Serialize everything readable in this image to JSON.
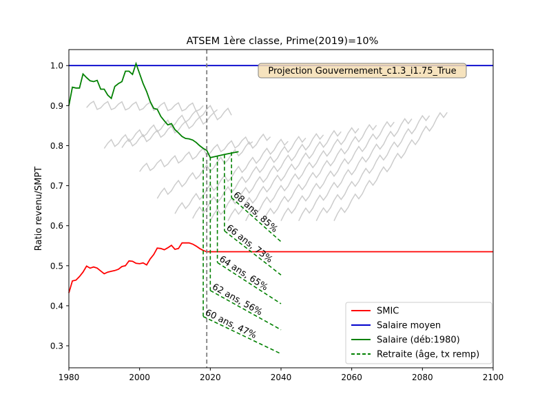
{
  "chart_data": {
    "type": "line",
    "title": "ATSEM 1ère classe, Prime(2019)=10%",
    "xlabel": "",
    "ylabel": "Ratio revenu/SMPT",
    "xlim": [
      1980,
      2100
    ],
    "ylim": [
      0.245,
      1.04
    ],
    "x_ticks": [
      1980,
      2000,
      2020,
      2040,
      2060,
      2080,
      2100
    ],
    "y_ticks": [
      0.3,
      0.4,
      0.5,
      0.6,
      0.7,
      0.8,
      0.9,
      1.0
    ],
    "grid": false,
    "legend_position": "lower right",
    "annotation_box": "Projection Gouvernement_c1.3_i1.75_True",
    "vertical_marker": {
      "x": 2019,
      "style": "dashed",
      "color": "#808080"
    },
    "series": [
      {
        "name": "SMIC",
        "color": "#ff0000",
        "style": "solid",
        "points": [
          [
            1980,
            0.432
          ],
          [
            1981,
            0.462
          ],
          [
            1982,
            0.464
          ],
          [
            1983,
            0.473
          ],
          [
            1984,
            0.484
          ],
          [
            1985,
            0.499
          ],
          [
            1986,
            0.494
          ],
          [
            1987,
            0.497
          ],
          [
            1988,
            0.494
          ],
          [
            1989,
            0.487
          ],
          [
            1990,
            0.48
          ],
          [
            1991,
            0.484
          ],
          [
            1992,
            0.486
          ],
          [
            1993,
            0.488
          ],
          [
            1994,
            0.491
          ],
          [
            1995,
            0.498
          ],
          [
            1996,
            0.5
          ],
          [
            1997,
            0.512
          ],
          [
            1998,
            0.511
          ],
          [
            1999,
            0.506
          ],
          [
            2000,
            0.505
          ],
          [
            2001,
            0.507
          ],
          [
            2002,
            0.502
          ],
          [
            2003,
            0.517
          ],
          [
            2004,
            0.528
          ],
          [
            2005,
            0.544
          ],
          [
            2006,
            0.543
          ],
          [
            2007,
            0.54
          ],
          [
            2008,
            0.545
          ],
          [
            2009,
            0.551
          ],
          [
            2010,
            0.541
          ],
          [
            2011,
            0.543
          ],
          [
            2012,
            0.557
          ],
          [
            2013,
            0.557
          ],
          [
            2014,
            0.557
          ],
          [
            2015,
            0.554
          ],
          [
            2016,
            0.549
          ],
          [
            2017,
            0.543
          ],
          [
            2018,
            0.538
          ],
          [
            2019,
            0.535
          ],
          [
            2030,
            0.535
          ],
          [
            2060,
            0.535
          ],
          [
            2100,
            0.535
          ]
        ]
      },
      {
        "name": "Salaire moyen",
        "color": "#0000cc",
        "style": "solid",
        "points": [
          [
            1980,
            1.0
          ],
          [
            2100,
            1.0
          ]
        ]
      },
      {
        "name": "Salaire (déb:1980)",
        "color": "#008000",
        "style": "solid",
        "points": [
          [
            1980,
            0.9
          ],
          [
            1981,
            0.946
          ],
          [
            1982,
            0.944
          ],
          [
            1983,
            0.944
          ],
          [
            1984,
            0.979
          ],
          [
            1985,
            0.97
          ],
          [
            1986,
            0.962
          ],
          [
            1987,
            0.96
          ],
          [
            1988,
            0.963
          ],
          [
            1989,
            0.941
          ],
          [
            1990,
            0.941
          ],
          [
            1991,
            0.926
          ],
          [
            1992,
            0.918
          ],
          [
            1993,
            0.948
          ],
          [
            1994,
            0.955
          ],
          [
            1995,
            0.96
          ],
          [
            1996,
            0.986
          ],
          [
            1997,
            0.986
          ],
          [
            1998,
            0.978
          ],
          [
            1999,
            1.005
          ],
          [
            2000,
            0.98
          ],
          [
            2001,
            0.955
          ],
          [
            2002,
            0.935
          ],
          [
            2003,
            0.91
          ],
          [
            2004,
            0.893
          ],
          [
            2005,
            0.891
          ],
          [
            2006,
            0.873
          ],
          [
            2007,
            0.862
          ],
          [
            2008,
            0.852
          ],
          [
            2009,
            0.855
          ],
          [
            2010,
            0.84
          ],
          [
            2011,
            0.832
          ],
          [
            2012,
            0.823
          ],
          [
            2013,
            0.818
          ],
          [
            2014,
            0.817
          ],
          [
            2015,
            0.814
          ],
          [
            2016,
            0.808
          ],
          [
            2017,
            0.8
          ],
          [
            2018,
            0.793
          ],
          [
            2019,
            0.788
          ],
          [
            2020,
            0.77
          ],
          [
            2024,
            0.778
          ],
          [
            2028,
            0.785
          ]
        ]
      },
      {
        "name": "Retraite (âge, tx remp)",
        "color": "#008000",
        "style": "dashed",
        "segments": [
          {
            "label": "60 ans, 47%",
            "drop_x": 2018,
            "drop_from": 0.77,
            "points": [
              [
                2018,
                0.373
              ],
              [
                2040,
                0.28
              ]
            ]
          },
          {
            "label": "62 ans, 56%",
            "drop_x": 2020,
            "drop_from": 0.772,
            "points": [
              [
                2020,
                0.438
              ],
              [
                2040,
                0.34
              ]
            ]
          },
          {
            "label": "64 ans, 65%",
            "drop_x": 2022,
            "drop_from": 0.775,
            "points": [
              [
                2022,
                0.508
              ],
              [
                2040,
                0.405
              ]
            ]
          },
          {
            "label": "66 ans, 73%",
            "drop_x": 2024,
            "drop_from": 0.778,
            "points": [
              [
                2024,
                0.587
              ],
              [
                2040,
                0.477
              ]
            ]
          },
          {
            "label": "68 ans, 85%",
            "drop_x": 2026,
            "drop_from": 0.784,
            "points": [
              [
                2026,
                0.67
              ],
              [
                2040,
                0.56
              ]
            ]
          }
        ]
      }
    ],
    "background_series_color": "#cccccc",
    "background_series": [
      {
        "start": 1985,
        "end": 2018,
        "start_y": 0.895,
        "end_y": 0.89
      },
      {
        "start": 1990,
        "end": 2022,
        "start_y": 0.793,
        "end_y": 0.89
      },
      {
        "start": 1995,
        "end": 2026,
        "start_y": 0.795,
        "end_y": 0.88
      },
      {
        "start": 2000,
        "end": 2032,
        "start_y": 0.735,
        "end_y": 0.81
      },
      {
        "start": 2005,
        "end": 2037,
        "start_y": 0.668,
        "end_y": 0.822
      },
      {
        "start": 2010,
        "end": 2042,
        "start_y": 0.63,
        "end_y": 0.811
      },
      {
        "start": 2015,
        "end": 2047,
        "start_y": 0.618,
        "end_y": 0.819
      },
      {
        "start": 2020,
        "end": 2052,
        "start_y": 0.612,
        "end_y": 0.827
      },
      {
        "start": 2025,
        "end": 2057,
        "start_y": 0.612,
        "end_y": 0.835
      },
      {
        "start": 2030,
        "end": 2062,
        "start_y": 0.612,
        "end_y": 0.843
      },
      {
        "start": 2035,
        "end": 2067,
        "start_y": 0.612,
        "end_y": 0.851
      },
      {
        "start": 2040,
        "end": 2072,
        "start_y": 0.612,
        "end_y": 0.859
      },
      {
        "start": 2045,
        "end": 2077,
        "start_y": 0.612,
        "end_y": 0.867
      },
      {
        "start": 2050,
        "end": 2082,
        "start_y": 0.612,
        "end_y": 0.875
      },
      {
        "start": 2055,
        "end": 2087,
        "start_y": 0.612,
        "end_y": 0.883
      }
    ]
  }
}
